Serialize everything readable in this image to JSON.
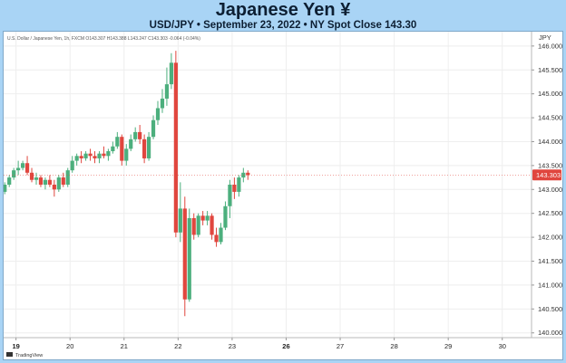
{
  "header": {
    "title": "Japanese Yen ¥",
    "subtitle": "USD/JPY • September 23, 2022 • NY Spot Close 143.30"
  },
  "legend": {
    "text": "U.S. Dollar / Japanese Yen, 1h, FXCM  O143.307  H143.388  L143.247  C143.303  -0.064 (-0.04%)"
  },
  "watermark": "TradingView",
  "colors": {
    "up": "#4caf7d",
    "down": "#e0463e",
    "banner": "#a9d4f5",
    "grid": "#eeeeee",
    "price_tag": "#e0463e"
  },
  "chart_data": {
    "type": "candlestick",
    "symbol": "USD/JPY",
    "y_axis_unit": "JPY",
    "ylim": [
      139.9,
      146.3
    ],
    "y_ticks": [
      140.0,
      140.5,
      141.0,
      141.5,
      142.0,
      142.5,
      143.0,
      143.5,
      144.0,
      144.5,
      145.0,
      145.5,
      146.0
    ],
    "x_ticks": [
      {
        "label": "19",
        "t": 0.0
      },
      {
        "label": "20",
        "t": 24.0
      },
      {
        "label": "21",
        "t": 48.0
      },
      {
        "label": "22",
        "t": 72.0
      },
      {
        "label": "23",
        "t": 96.0
      },
      {
        "label": "26",
        "t": 120.0
      },
      {
        "label": "27",
        "t": 144.0
      },
      {
        "label": "28",
        "t": 168.0
      },
      {
        "label": "29",
        "t": 192.0
      },
      {
        "label": "30",
        "t": 216.0
      }
    ],
    "x_range": [
      -5.5,
      229.0
    ],
    "last_price": "143.303",
    "last_value": 143.303,
    "candles": [
      {
        "t": -5.0,
        "o": 142.95,
        "h": 143.15,
        "l": 142.9,
        "c": 143.1
      },
      {
        "t": -3.0,
        "o": 143.1,
        "h": 143.3,
        "l": 143.05,
        "c": 143.25
      },
      {
        "t": -1.0,
        "o": 143.25,
        "h": 143.45,
        "l": 143.2,
        "c": 143.4
      },
      {
        "t": 1.0,
        "o": 143.4,
        "h": 143.6,
        "l": 143.3,
        "c": 143.45
      },
      {
        "t": 3.0,
        "o": 143.45,
        "h": 143.6,
        "l": 143.4,
        "c": 143.55
      },
      {
        "t": 5.0,
        "o": 143.55,
        "h": 143.7,
        "l": 143.3,
        "c": 143.35
      },
      {
        "t": 7.0,
        "o": 143.35,
        "h": 143.45,
        "l": 143.15,
        "c": 143.2
      },
      {
        "t": 9.0,
        "o": 143.2,
        "h": 143.35,
        "l": 143.1,
        "c": 143.25
      },
      {
        "t": 11.0,
        "o": 143.25,
        "h": 143.3,
        "l": 143.05,
        "c": 143.1
      },
      {
        "t": 13.0,
        "o": 143.1,
        "h": 143.25,
        "l": 143.0,
        "c": 143.2
      },
      {
        "t": 15.0,
        "o": 143.2,
        "h": 143.3,
        "l": 143.05,
        "c": 143.1
      },
      {
        "t": 17.0,
        "o": 143.1,
        "h": 143.2,
        "l": 142.85,
        "c": 143.0
      },
      {
        "t": 19.0,
        "o": 143.0,
        "h": 143.3,
        "l": 142.95,
        "c": 143.25
      },
      {
        "t": 21.0,
        "o": 143.25,
        "h": 143.35,
        "l": 143.05,
        "c": 143.1
      },
      {
        "t": 23.0,
        "o": 143.1,
        "h": 143.45,
        "l": 143.05,
        "c": 143.4
      },
      {
        "t": 25.0,
        "o": 143.4,
        "h": 143.7,
        "l": 143.35,
        "c": 143.6
      },
      {
        "t": 27.0,
        "o": 143.6,
        "h": 143.75,
        "l": 143.5,
        "c": 143.7
      },
      {
        "t": 29.0,
        "o": 143.7,
        "h": 143.8,
        "l": 143.55,
        "c": 143.65
      },
      {
        "t": 31.0,
        "o": 143.65,
        "h": 143.8,
        "l": 143.6,
        "c": 143.75
      },
      {
        "t": 33.0,
        "o": 143.75,
        "h": 143.85,
        "l": 143.6,
        "c": 143.7
      },
      {
        "t": 35.0,
        "o": 143.7,
        "h": 143.8,
        "l": 143.55,
        "c": 143.65
      },
      {
        "t": 37.0,
        "o": 143.65,
        "h": 143.8,
        "l": 143.55,
        "c": 143.75
      },
      {
        "t": 39.0,
        "o": 143.75,
        "h": 143.9,
        "l": 143.65,
        "c": 143.7
      },
      {
        "t": 41.0,
        "o": 143.7,
        "h": 143.85,
        "l": 143.6,
        "c": 143.8
      },
      {
        "t": 43.0,
        "o": 143.8,
        "h": 144.0,
        "l": 143.75,
        "c": 143.9
      },
      {
        "t": 45.0,
        "o": 143.9,
        "h": 144.2,
        "l": 143.85,
        "c": 144.1
      },
      {
        "t": 47.0,
        "o": 144.1,
        "h": 144.15,
        "l": 143.5,
        "c": 143.6
      },
      {
        "t": 49.0,
        "o": 143.6,
        "h": 143.95,
        "l": 143.5,
        "c": 143.85
      },
      {
        "t": 51.0,
        "o": 143.85,
        "h": 144.15,
        "l": 143.8,
        "c": 144.05
      },
      {
        "t": 53.0,
        "o": 144.05,
        "h": 144.3,
        "l": 144.0,
        "c": 144.2
      },
      {
        "t": 55.0,
        "o": 144.2,
        "h": 144.35,
        "l": 143.95,
        "c": 144.05
      },
      {
        "t": 57.0,
        "o": 144.05,
        "h": 144.15,
        "l": 143.55,
        "c": 143.65
      },
      {
        "t": 59.0,
        "o": 143.65,
        "h": 144.2,
        "l": 143.6,
        "c": 144.1
      },
      {
        "t": 61.0,
        "o": 144.1,
        "h": 144.55,
        "l": 144.05,
        "c": 144.45
      },
      {
        "t": 63.0,
        "o": 144.45,
        "h": 144.85,
        "l": 144.35,
        "c": 144.7
      },
      {
        "t": 65.0,
        "o": 144.7,
        "h": 145.1,
        "l": 144.6,
        "c": 144.9
      },
      {
        "t": 67.0,
        "o": 144.9,
        "h": 145.55,
        "l": 144.75,
        "c": 145.2
      },
      {
        "t": 69.0,
        "o": 145.2,
        "h": 145.85,
        "l": 145.1,
        "c": 145.65
      },
      {
        "t": 71.0,
        "o": 145.65,
        "h": 145.9,
        "l": 142.0,
        "c": 142.1
      },
      {
        "t": 73.0,
        "o": 142.1,
        "h": 143.15,
        "l": 141.9,
        "c": 142.6
      },
      {
        "t": 75.0,
        "o": 142.6,
        "h": 142.85,
        "l": 140.35,
        "c": 140.7
      },
      {
        "t": 77.0,
        "o": 140.7,
        "h": 142.6,
        "l": 140.65,
        "c": 142.4
      },
      {
        "t": 79.0,
        "o": 142.4,
        "h": 142.5,
        "l": 141.95,
        "c": 142.05
      },
      {
        "t": 81.0,
        "o": 142.05,
        "h": 142.5,
        "l": 142.0,
        "c": 142.45
      },
      {
        "t": 83.0,
        "o": 142.45,
        "h": 142.55,
        "l": 142.25,
        "c": 142.35
      },
      {
        "t": 85.0,
        "o": 142.35,
        "h": 142.55,
        "l": 142.25,
        "c": 142.45
      },
      {
        "t": 87.0,
        "o": 142.45,
        "h": 142.5,
        "l": 141.95,
        "c": 142.05
      },
      {
        "t": 89.0,
        "o": 142.05,
        "h": 142.2,
        "l": 141.8,
        "c": 141.9
      },
      {
        "t": 91.0,
        "o": 141.9,
        "h": 142.3,
        "l": 141.85,
        "c": 142.2
      },
      {
        "t": 93.0,
        "o": 142.2,
        "h": 142.75,
        "l": 142.15,
        "c": 142.65
      },
      {
        "t": 95.0,
        "o": 142.65,
        "h": 143.2,
        "l": 142.4,
        "c": 143.1
      },
      {
        "t": 97.0,
        "o": 143.1,
        "h": 143.25,
        "l": 142.8,
        "c": 142.95
      },
      {
        "t": 99.0,
        "o": 142.95,
        "h": 143.3,
        "l": 142.85,
        "c": 143.25
      },
      {
        "t": 101.0,
        "o": 143.25,
        "h": 143.45,
        "l": 143.15,
        "c": 143.35
      },
      {
        "t": 103.0,
        "o": 143.35,
        "h": 143.4,
        "l": 143.2,
        "c": 143.3
      }
    ]
  }
}
